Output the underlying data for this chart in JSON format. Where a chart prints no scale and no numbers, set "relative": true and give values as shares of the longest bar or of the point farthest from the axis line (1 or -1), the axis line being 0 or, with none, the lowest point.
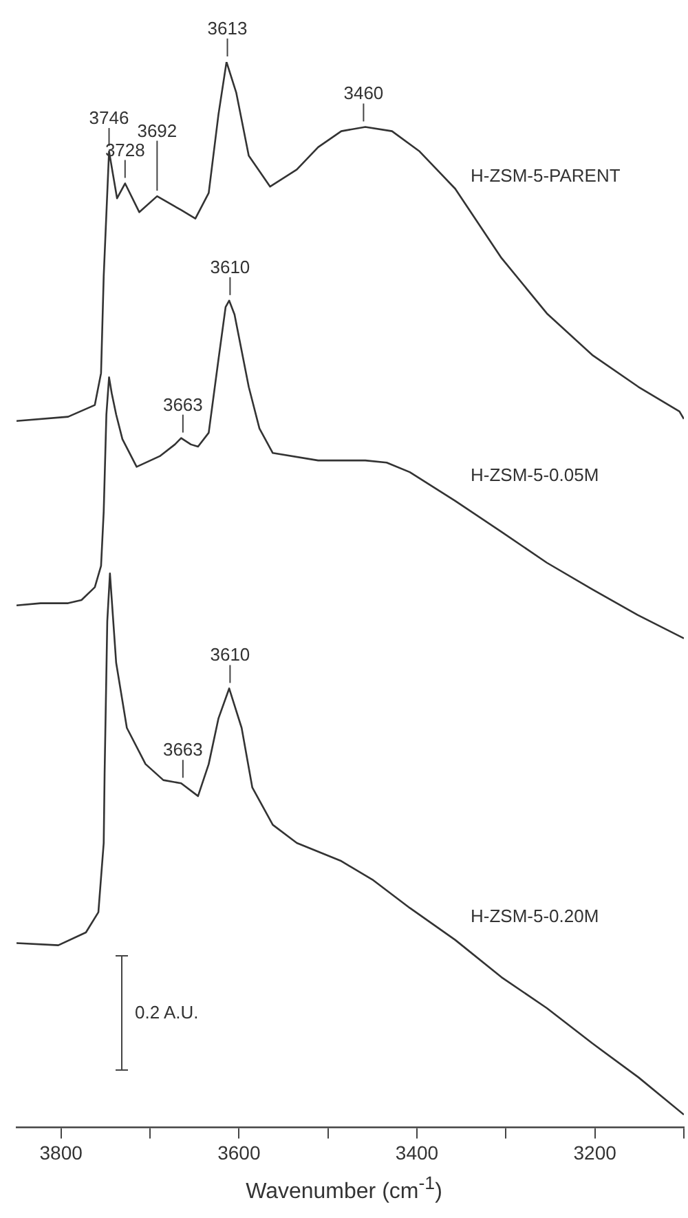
{
  "chart_data": {
    "type": "line",
    "relative": true,
    "xlabel": "Wavenumber (cm$^{-1}$)",
    "xlim": [
      3850,
      3100
    ],
    "xticks": [
      3800,
      {
        "value": 3700,
        "label": null
      },
      3600,
      {
        "value": 3500,
        "label": null
      },
      3400,
      {
        "value": 3300,
        "label": null
      },
      3200,
      {
        "value": 3100,
        "label": null
      }
    ],
    "legend": false,
    "grid": false,
    "marker": "none",
    "line_style": "solid",
    "series": [
      {
        "name": "H-ZSM-5-PARENT",
        "color": "#333333",
        "x": [
          3850,
          3792,
          3762,
          3755,
          3752,
          3746,
          3737,
          3728,
          3712,
          3692,
          3665,
          3649,
          3634,
          3623,
          3614,
          3603,
          3589,
          3565,
          3535,
          3511,
          3485,
          3458,
          3428,
          3397,
          3357,
          3305,
          3254,
          3203,
          3151,
          3105,
          3100
        ],
        "values": [
          0.663,
          0.667,
          0.678,
          0.708,
          0.799,
          0.916,
          0.872,
          0.886,
          0.859,
          0.874,
          0.861,
          0.853,
          0.877,
          0.951,
          1.0,
          0.971,
          0.912,
          0.883,
          0.899,
          0.92,
          0.935,
          0.939,
          0.935,
          0.916,
          0.881,
          0.816,
          0.764,
          0.725,
          0.695,
          0.672,
          0.665
        ]
      },
      {
        "name": "H-ZSM-5-0.05M",
        "color": "#333333",
        "x": [
          3850,
          3823,
          3792,
          3777,
          3762,
          3755,
          3752,
          3749,
          3746,
          3743,
          3738,
          3731,
          3715,
          3689,
          3672,
          3665,
          3654,
          3646,
          3634,
          3623,
          3615,
          3611,
          3605,
          3589,
          3577,
          3562,
          3511,
          3458,
          3434,
          3408,
          3357,
          3305,
          3254,
          3203,
          3152,
          3100
        ],
        "values": [
          0.49,
          0.492,
          0.492,
          0.495,
          0.507,
          0.527,
          0.578,
          0.669,
          0.704,
          0.689,
          0.669,
          0.646,
          0.62,
          0.63,
          0.641,
          0.647,
          0.641,
          0.639,
          0.652,
          0.721,
          0.77,
          0.776,
          0.763,
          0.695,
          0.656,
          0.633,
          0.626,
          0.626,
          0.624,
          0.615,
          0.588,
          0.559,
          0.53,
          0.505,
          0.481,
          0.459
        ]
      },
      {
        "name": "H-ZSM-5-0.20M",
        "color": "#333333",
        "x": [
          3850,
          3803,
          3772,
          3758,
          3752,
          3751,
          3748,
          3745,
          3738,
          3726,
          3705,
          3685,
          3665,
          3646,
          3634,
          3623,
          3611,
          3597,
          3585,
          3562,
          3535,
          3485,
          3449,
          3408,
          3357,
          3305,
          3254,
          3203,
          3151,
          3100
        ],
        "values": [
          0.173,
          0.171,
          0.183,
          0.202,
          0.267,
          0.332,
          0.475,
          0.52,
          0.436,
          0.375,
          0.341,
          0.326,
          0.323,
          0.311,
          0.341,
          0.384,
          0.412,
          0.375,
          0.319,
          0.284,
          0.267,
          0.25,
          0.232,
          0.206,
          0.176,
          0.141,
          0.112,
          0.079,
          0.047,
          0.012
        ]
      }
    ],
    "annotations": [
      {
        "text": "3613",
        "x": 3613,
        "y": 1.0
      },
      {
        "text": "3746",
        "x": 3746,
        "y": 0.916
      },
      {
        "text": "3728",
        "x": 3728,
        "y": 0.886
      },
      {
        "text": "3692",
        "x": 3692,
        "y": 0.874
      },
      {
        "text": "3460",
        "x": 3460,
        "y": 0.939
      },
      {
        "text": "3610",
        "x": 3610,
        "y": 0.776
      },
      {
        "text": "3663",
        "x": 3663,
        "y": 0.647
      },
      {
        "text": "3610",
        "x": 3610,
        "y": 0.412
      },
      {
        "text": "3663",
        "x": 3663,
        "y": 0.323
      },
      "0.2 A.U."
    ]
  }
}
